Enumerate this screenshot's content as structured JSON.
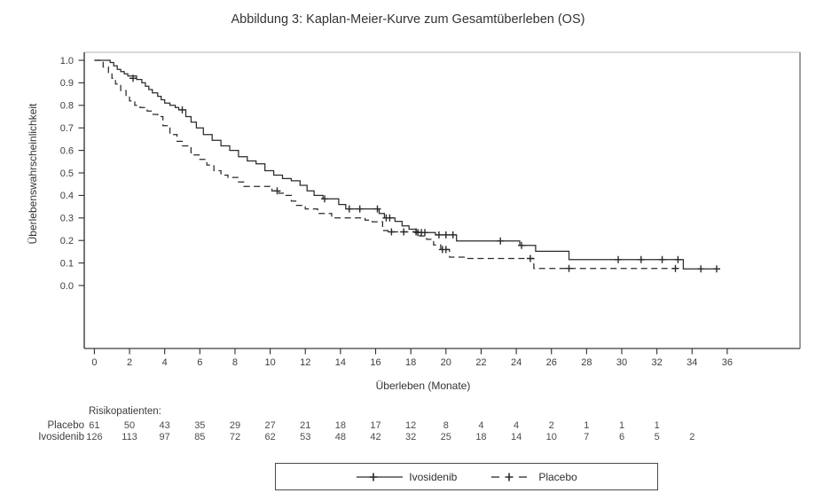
{
  "title": "Abbildung 3: Kaplan-Meier-Kurve zum Gesamtüberleben (OS)",
  "colors": {
    "curve": "#2a2a2a",
    "text": "#3d3d3d",
    "axis": "#2d2d2d",
    "frame_top": "#cbcbcb",
    "frame_right": "#757575",
    "frame_bottom": "#5f5f5f"
  },
  "chart_data": {
    "type": "line",
    "subtype": "kaplan-meier-step",
    "title": "Abbildung 3: Kaplan-Meier-Kurve zum Gesamtüberleben (OS)",
    "xlabel": "Überleben (Monate)",
    "ylabel": "Überlebenswahrscheinlichkeit",
    "xlim": [
      0,
      36
    ],
    "ylim": [
      0.0,
      1.0
    ],
    "grid": false,
    "x_ticks": [
      0,
      2,
      4,
      6,
      8,
      10,
      12,
      14,
      16,
      18,
      20,
      22,
      24,
      26,
      28,
      30,
      32,
      34,
      36
    ],
    "y_ticks": [
      1.0,
      0.9,
      0.8,
      0.7,
      0.6,
      0.5,
      0.4,
      0.3,
      0.2,
      0.1,
      0.0
    ],
    "legend_position": "bottom-center-boxed",
    "series": [
      {
        "name": "Ivosidenib",
        "style": "solid",
        "n": 126,
        "steps": [
          [
            0,
            1.0
          ],
          [
            0.9,
            0.99
          ],
          [
            1.1,
            0.975
          ],
          [
            1.3,
            0.96
          ],
          [
            1.5,
            0.95
          ],
          [
            1.7,
            0.94
          ],
          [
            1.9,
            0.93
          ],
          [
            2.4,
            0.915
          ],
          [
            2.7,
            0.9
          ],
          [
            2.9,
            0.885
          ],
          [
            3.1,
            0.87
          ],
          [
            3.3,
            0.855
          ],
          [
            3.6,
            0.84
          ],
          [
            3.8,
            0.825
          ],
          [
            4.0,
            0.81
          ],
          [
            4.3,
            0.8
          ],
          [
            4.6,
            0.79
          ],
          [
            4.8,
            0.78
          ],
          [
            5.2,
            0.75
          ],
          [
            5.5,
            0.725
          ],
          [
            5.8,
            0.7
          ],
          [
            6.2,
            0.67
          ],
          [
            6.7,
            0.645
          ],
          [
            7.2,
            0.62
          ],
          [
            7.7,
            0.6
          ],
          [
            8.2,
            0.572
          ],
          [
            8.7,
            0.553
          ],
          [
            9.2,
            0.54
          ],
          [
            9.7,
            0.51
          ],
          [
            10.2,
            0.49
          ],
          [
            10.7,
            0.475
          ],
          [
            11.2,
            0.465
          ],
          [
            11.7,
            0.445
          ],
          [
            12.1,
            0.42
          ],
          [
            12.5,
            0.4
          ],
          [
            13.0,
            0.385
          ],
          [
            13.9,
            0.36
          ],
          [
            14.3,
            0.34
          ],
          [
            16.2,
            0.32
          ],
          [
            16.5,
            0.3
          ],
          [
            17.1,
            0.285
          ],
          [
            17.5,
            0.265
          ],
          [
            17.9,
            0.25
          ],
          [
            18.3,
            0.235
          ],
          [
            19.4,
            0.225
          ],
          [
            20.6,
            0.198
          ],
          [
            24.2,
            0.178
          ],
          [
            25.1,
            0.152
          ],
          [
            27.0,
            0.115
          ],
          [
            33.5,
            0.074
          ]
        ],
        "end": 35.6,
        "censors": [
          [
            2.2,
            0.92
          ],
          [
            5.0,
            0.78
          ],
          [
            13.1,
            0.385
          ],
          [
            14.5,
            0.34
          ],
          [
            15.1,
            0.34
          ],
          [
            16.1,
            0.34
          ],
          [
            16.6,
            0.3
          ],
          [
            16.8,
            0.3
          ],
          [
            18.4,
            0.235
          ],
          [
            18.6,
            0.235
          ],
          [
            18.8,
            0.235
          ],
          [
            19.6,
            0.225
          ],
          [
            20.0,
            0.225
          ],
          [
            20.4,
            0.225
          ],
          [
            23.1,
            0.198
          ],
          [
            24.3,
            0.178
          ],
          [
            29.8,
            0.115
          ],
          [
            31.1,
            0.115
          ],
          [
            32.3,
            0.115
          ],
          [
            33.2,
            0.115
          ],
          [
            34.5,
            0.074
          ],
          [
            35.4,
            0.074
          ]
        ]
      },
      {
        "name": "Placebo",
        "style": "dashed",
        "n": 61,
        "steps": [
          [
            0,
            1.0
          ],
          [
            0.5,
            0.97
          ],
          [
            0.8,
            0.945
          ],
          [
            1.0,
            0.92
          ],
          [
            1.2,
            0.895
          ],
          [
            1.5,
            0.865
          ],
          [
            1.8,
            0.84
          ],
          [
            2.0,
            0.82
          ],
          [
            2.3,
            0.8
          ],
          [
            2.6,
            0.79
          ],
          [
            3.0,
            0.775
          ],
          [
            3.3,
            0.76
          ],
          [
            3.6,
            0.75
          ],
          [
            3.9,
            0.71
          ],
          [
            4.3,
            0.67
          ],
          [
            4.7,
            0.64
          ],
          [
            5.0,
            0.62
          ],
          [
            5.5,
            0.58
          ],
          [
            6.0,
            0.56
          ],
          [
            6.4,
            0.535
          ],
          [
            6.8,
            0.51
          ],
          [
            7.2,
            0.49
          ],
          [
            7.6,
            0.48
          ],
          [
            8.2,
            0.46
          ],
          [
            8.5,
            0.44
          ],
          [
            10.1,
            0.42
          ],
          [
            10.5,
            0.41
          ],
          [
            10.9,
            0.4
          ],
          [
            11.2,
            0.375
          ],
          [
            11.5,
            0.356
          ],
          [
            12.0,
            0.34
          ],
          [
            12.7,
            0.32
          ],
          [
            13.5,
            0.3
          ],
          [
            15.4,
            0.29
          ],
          [
            15.8,
            0.283
          ],
          [
            16.4,
            0.244
          ],
          [
            16.7,
            0.238
          ],
          [
            18.5,
            0.22
          ],
          [
            18.9,
            0.205
          ],
          [
            19.3,
            0.18
          ],
          [
            19.7,
            0.16
          ],
          [
            20.2,
            0.126
          ],
          [
            21.2,
            0.12
          ],
          [
            25.0,
            0.076
          ]
        ],
        "end": 33.2,
        "censors": [
          [
            10.4,
            0.42
          ],
          [
            16.9,
            0.238
          ],
          [
            17.6,
            0.238
          ],
          [
            18.3,
            0.238
          ],
          [
            19.8,
            0.16
          ],
          [
            20.0,
            0.16
          ],
          [
            24.8,
            0.12
          ],
          [
            27.0,
            0.076
          ],
          [
            33.05,
            0.076
          ]
        ]
      }
    ],
    "risk_table": {
      "header": "Risikopatienten:",
      "months": [
        0,
        2,
        4,
        6,
        8,
        10,
        12,
        14,
        16,
        18,
        20,
        22,
        24,
        26,
        28,
        30,
        32,
        34
      ],
      "rows": [
        {
          "label": "Placebo",
          "values": [
            "61",
            "50",
            "43",
            "35",
            "29",
            "27",
            "21",
            "18",
            "17",
            "12",
            "8",
            "4",
            "4",
            "2",
            "1",
            "1",
            "1",
            ""
          ]
        },
        {
          "label": "Ivosidenib",
          "values": [
            "126",
            "113",
            "97",
            "85",
            "72",
            "62",
            "53",
            "48",
            "42",
            "32",
            "25",
            "18",
            "14",
            "10",
            "7",
            "6",
            "5",
            "2"
          ]
        }
      ]
    },
    "legend": [
      {
        "label": "Ivosidenib",
        "style": "solid"
      },
      {
        "label": "Placebo",
        "style": "dashed"
      }
    ]
  }
}
